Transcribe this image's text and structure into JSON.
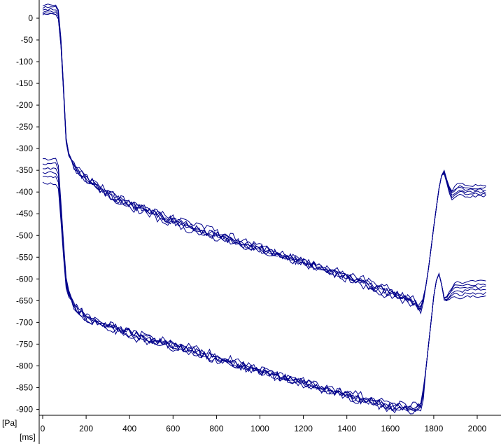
{
  "chart_data": {
    "type": "line",
    "title": "",
    "xlabel": "[ms]",
    "ylabel": "[Pa]",
    "xlim": [
      0,
      2100
    ],
    "ylim": [
      -920,
      35
    ],
    "x_ticks": [
      0,
      200,
      400,
      600,
      800,
      1000,
      1200,
      1400,
      1600,
      1800,
      2000
    ],
    "y_ticks": [
      0,
      -50,
      -100,
      -150,
      -200,
      -250,
      -300,
      -350,
      -400,
      -450,
      -500,
      -550,
      -600,
      -650,
      -700,
      -750,
      -800,
      -850,
      -900
    ],
    "grid": false,
    "legend": "none",
    "line_color": "#00008b",
    "trace_groups": [
      {
        "baselines": [
          30,
          25,
          20,
          15,
          10,
          8
        ],
        "x": [
          0,
          70,
          85,
          100,
          110,
          125,
          150,
          200,
          300,
          400,
          500,
          600,
          700,
          800,
          900,
          1000,
          1100,
          1200,
          1300,
          1400,
          1500,
          1600,
          1700,
          1745,
          1770,
          1800,
          1830,
          1845,
          1860,
          1880,
          1900,
          1925,
          1950,
          2000,
          2050
        ],
        "base": [
          20,
          20,
          -60,
          -200,
          -300,
          -320,
          -340,
          -365,
          -400,
          -425,
          -445,
          -465,
          -485,
          -502,
          -518,
          -533,
          -550,
          -565,
          -582,
          -598,
          -615,
          -633,
          -652,
          -665,
          -600,
          -480,
          -370,
          -350,
          -375,
          -410,
          -400,
          -395,
          -400,
          -400,
          -400
        ],
        "tail_offsets": [
          -10,
          -5,
          0,
          5,
          10,
          15
        ]
      },
      {
        "baselines": [
          -325,
          -335,
          -345,
          -355,
          -365,
          -380
        ],
        "x": [
          0,
          70,
          85,
          100,
          110,
          125,
          150,
          200,
          300,
          400,
          500,
          600,
          700,
          800,
          900,
          1000,
          1100,
          1200,
          1300,
          1400,
          1500,
          1600,
          1700,
          1745,
          1770,
          1800,
          1820,
          1835,
          1850,
          1870,
          1900,
          1925,
          1950,
          2000,
          2050
        ],
        "base": [
          -350,
          -350,
          -450,
          -560,
          -620,
          -640,
          -660,
          -685,
          -705,
          -722,
          -738,
          -752,
          -768,
          -785,
          -800,
          -815,
          -830,
          -843,
          -857,
          -870,
          -882,
          -893,
          -895,
          -895,
          -780,
          -640,
          -580,
          -610,
          -650,
          -640,
          -625,
          -630,
          -625,
          -625,
          -625
        ],
        "tail_offsets": [
          -15,
          -8,
          0,
          6,
          12,
          20
        ]
      }
    ]
  }
}
